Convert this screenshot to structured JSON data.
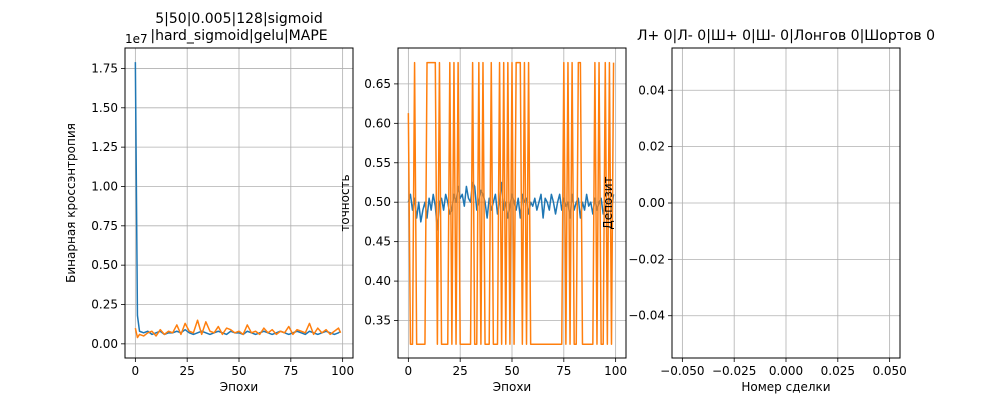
{
  "colors": {
    "blue": "#1f77b4",
    "orange": "#ff7f0e"
  },
  "chart_data": [
    {
      "type": "line",
      "title": "5|50|0.005|128|sigmoid\n|hard_sigmoid|gelu|MAPE",
      "xlabel": "Эпохи",
      "ylabel": "Бинарная кроссэнтропия",
      "offset_text": "1e7",
      "xlim": [
        -5,
        105
      ],
      "ylim": [
        -0.09,
        1.88
      ],
      "xticks": [
        0,
        25,
        50,
        75,
        100
      ],
      "xtick_labels": [
        "0",
        "25",
        "50",
        "75",
        "100"
      ],
      "yticks": [
        0,
        0.25,
        0.5,
        0.75,
        1.0,
        1.25,
        1.5,
        1.75
      ],
      "ytick_labels": [
        "0.00",
        "0.25",
        "0.50",
        "0.75",
        "1.00",
        "1.25",
        "1.50",
        "1.75"
      ],
      "grid": true,
      "series": [
        {
          "color_key": "blue",
          "x": [
            0,
            1,
            2,
            4,
            6,
            8,
            10,
            12,
            14,
            16,
            18,
            20,
            22,
            24,
            26,
            28,
            30,
            32,
            34,
            36,
            38,
            40,
            42,
            44,
            46,
            48,
            50,
            52,
            54,
            56,
            58,
            60,
            62,
            64,
            66,
            68,
            70,
            72,
            74,
            76,
            78,
            80,
            82,
            84,
            86,
            88,
            90,
            92,
            94,
            96,
            98,
            99
          ],
          "y": [
            1.79,
            0.18,
            0.08,
            0.07,
            0.08,
            0.06,
            0.07,
            0.08,
            0.06,
            0.07,
            0.07,
            0.08,
            0.07,
            0.09,
            0.07,
            0.06,
            0.07,
            0.08,
            0.07,
            0.06,
            0.07,
            0.08,
            0.07,
            0.06,
            0.08,
            0.07,
            0.07,
            0.06,
            0.08,
            0.07,
            0.06,
            0.07,
            0.08,
            0.07,
            0.06,
            0.07,
            0.08,
            0.07,
            0.06,
            0.07,
            0.08,
            0.07,
            0.06,
            0.08,
            0.07,
            0.06,
            0.07,
            0.08,
            0.07,
            0.06,
            0.07,
            0.08
          ]
        },
        {
          "color_key": "orange",
          "x": [
            0,
            1,
            2,
            4,
            6,
            8,
            10,
            12,
            14,
            16,
            18,
            20,
            22,
            24,
            26,
            28,
            30,
            32,
            34,
            36,
            38,
            40,
            42,
            44,
            46,
            48,
            50,
            52,
            54,
            56,
            58,
            60,
            62,
            64,
            66,
            68,
            70,
            72,
            74,
            76,
            78,
            80,
            82,
            84,
            86,
            88,
            90,
            92,
            94,
            96,
            98,
            99
          ],
          "y": [
            0.1,
            0.04,
            0.06,
            0.05,
            0.07,
            0.08,
            0.05,
            0.09,
            0.06,
            0.08,
            0.07,
            0.12,
            0.06,
            0.13,
            0.08,
            0.07,
            0.15,
            0.06,
            0.14,
            0.08,
            0.07,
            0.11,
            0.06,
            0.1,
            0.09,
            0.07,
            0.08,
            0.06,
            0.12,
            0.07,
            0.08,
            0.06,
            0.1,
            0.07,
            0.09,
            0.06,
            0.08,
            0.07,
            0.11,
            0.06,
            0.09,
            0.08,
            0.07,
            0.13,
            0.06,
            0.1,
            0.07,
            0.09,
            0.06,
            0.08,
            0.1,
            0.07
          ]
        }
      ]
    },
    {
      "type": "line",
      "title": "",
      "xlabel": "Эпохи",
      "ylabel": "точность",
      "xlim": [
        -5,
        105
      ],
      "ylim": [
        0.3025,
        0.6955
      ],
      "xticks": [
        0,
        25,
        50,
        75,
        100
      ],
      "xtick_labels": [
        "0",
        "25",
        "50",
        "75",
        "100"
      ],
      "yticks": [
        0.35,
        0.4,
        0.45,
        0.5,
        0.55,
        0.6,
        0.65
      ],
      "ytick_labels": [
        "0.35",
        "0.40",
        "0.45",
        "0.50",
        "0.55",
        "0.60",
        "0.65"
      ],
      "grid": true,
      "series": [
        {
          "color_key": "blue",
          "x": [
            0,
            1,
            2,
            3,
            4,
            5,
            6,
            7,
            8,
            9,
            10,
            11,
            12,
            13,
            14,
            15,
            16,
            17,
            18,
            19,
            20,
            21,
            22,
            23,
            24,
            25,
            26,
            27,
            28,
            29,
            30,
            31,
            32,
            33,
            34,
            35,
            36,
            37,
            38,
            39,
            40,
            41,
            42,
            43,
            44,
            45,
            46,
            47,
            48,
            49,
            50,
            51,
            52,
            53,
            54,
            55,
            56,
            57,
            58,
            59,
            60,
            61,
            62,
            63,
            64,
            65,
            66,
            67,
            68,
            69,
            70,
            71,
            72,
            73,
            74,
            75,
            76,
            77,
            78,
            79,
            80,
            81,
            82,
            83,
            84,
            85,
            86,
            87,
            88,
            89,
            90,
            91,
            92,
            93,
            94,
            95,
            96,
            97,
            98,
            99
          ],
          "y": [
            0.5,
            0.51,
            0.49,
            0.505,
            0.48,
            0.5,
            0.475,
            0.49,
            0.5,
            0.48,
            0.505,
            0.49,
            0.51,
            0.495,
            0.465,
            0.5,
            0.505,
            0.49,
            0.51,
            0.5,
            0.485,
            0.49,
            0.51,
            0.5,
            0.52,
            0.505,
            0.51,
            0.495,
            0.52,
            0.505,
            0.5,
            0.525,
            0.52,
            0.49,
            0.5,
            0.515,
            0.51,
            0.5,
            0.48,
            0.505,
            0.49,
            0.5,
            0.51,
            0.485,
            0.5,
            0.525,
            0.49,
            0.5,
            0.48,
            0.495,
            0.51,
            0.5,
            0.49,
            0.505,
            0.48,
            0.51,
            0.5,
            0.505,
            0.485,
            0.5,
            0.495,
            0.505,
            0.49,
            0.5,
            0.51,
            0.48,
            0.505,
            0.5,
            0.49,
            0.51,
            0.5,
            0.485,
            0.5,
            0.51,
            0.49,
            0.505,
            0.495,
            0.5,
            0.48,
            0.51,
            0.49,
            0.5,
            0.505,
            0.48,
            0.5,
            0.49,
            0.51,
            0.495,
            0.5,
            0.485,
            0.505,
            0.49,
            0.5,
            0.505,
            0.485,
            0.495,
            0.5,
            0.505,
            0.49,
            0.51
          ]
        },
        {
          "color_key": "orange",
          "x": [
            0,
            1,
            2,
            3,
            4,
            5,
            6,
            7,
            8,
            9,
            10,
            11,
            12,
            13,
            14,
            15,
            16,
            17,
            18,
            19,
            20,
            21,
            22,
            23,
            24,
            25,
            26,
            27,
            28,
            29,
            30,
            31,
            32,
            33,
            34,
            35,
            36,
            37,
            38,
            39,
            40,
            41,
            42,
            43,
            44,
            45,
            46,
            47,
            48,
            49,
            50,
            51,
            52,
            53,
            54,
            55,
            56,
            57,
            58,
            59,
            60,
            61,
            62,
            63,
            64,
            65,
            66,
            67,
            68,
            69,
            70,
            71,
            72,
            73,
            74,
            75,
            76,
            77,
            78,
            79,
            80,
            81,
            82,
            83,
            84,
            85,
            86,
            87,
            88,
            89,
            90,
            91,
            92,
            93,
            94,
            95,
            96,
            97,
            98,
            99
          ],
          "y": [
            0.613,
            0.32,
            0.32,
            0.677,
            0.32,
            0.32,
            0.32,
            0.32,
            0.32,
            0.677,
            0.677,
            0.677,
            0.677,
            0.677,
            0.32,
            0.677,
            0.32,
            0.32,
            0.32,
            0.32,
            0.677,
            0.32,
            0.677,
            0.32,
            0.677,
            0.32,
            0.32,
            0.32,
            0.32,
            0.32,
            0.32,
            0.677,
            0.32,
            0.32,
            0.677,
            0.32,
            0.677,
            0.32,
            0.32,
            0.32,
            0.677,
            0.32,
            0.32,
            0.32,
            0.677,
            0.32,
            0.677,
            0.32,
            0.677,
            0.32,
            0.677,
            0.32,
            0.677,
            0.677,
            0.677,
            0.32,
            0.677,
            0.32,
            0.677,
            0.32,
            0.32,
            0.32,
            0.32,
            0.32,
            0.32,
            0.32,
            0.32,
            0.32,
            0.32,
            0.32,
            0.32,
            0.32,
            0.32,
            0.32,
            0.32,
            0.677,
            0.32,
            0.677,
            0.32,
            0.677,
            0.32,
            0.32,
            0.677,
            0.677,
            0.32,
            0.32,
            0.32,
            0.32,
            0.32,
            0.32,
            0.677,
            0.32,
            0.677,
            0.32,
            0.32,
            0.677,
            0.32,
            0.677,
            0.32,
            0.677
          ]
        }
      ]
    },
    {
      "type": "line",
      "title": "Л+ 0|Л- 0|Ш+ 0|Ш- 0|Лонгов 0|Шортов 0",
      "xlabel": "Номер сделки",
      "ylabel": "Депозит",
      "xlim": [
        -0.055,
        0.055
      ],
      "ylim": [
        -0.055,
        0.055
      ],
      "xticks": [
        -0.05,
        -0.025,
        0,
        0.025,
        0.05
      ],
      "xtick_labels": [
        "−0.050",
        "−0.025",
        "0.000",
        "0.025",
        "0.050"
      ],
      "yticks": [
        -0.04,
        -0.02,
        0,
        0.02,
        0.04
      ],
      "ytick_labels": [
        "−0.04",
        "−0.02",
        "0.00",
        "0.02",
        "0.04"
      ],
      "grid": true,
      "series": []
    }
  ]
}
